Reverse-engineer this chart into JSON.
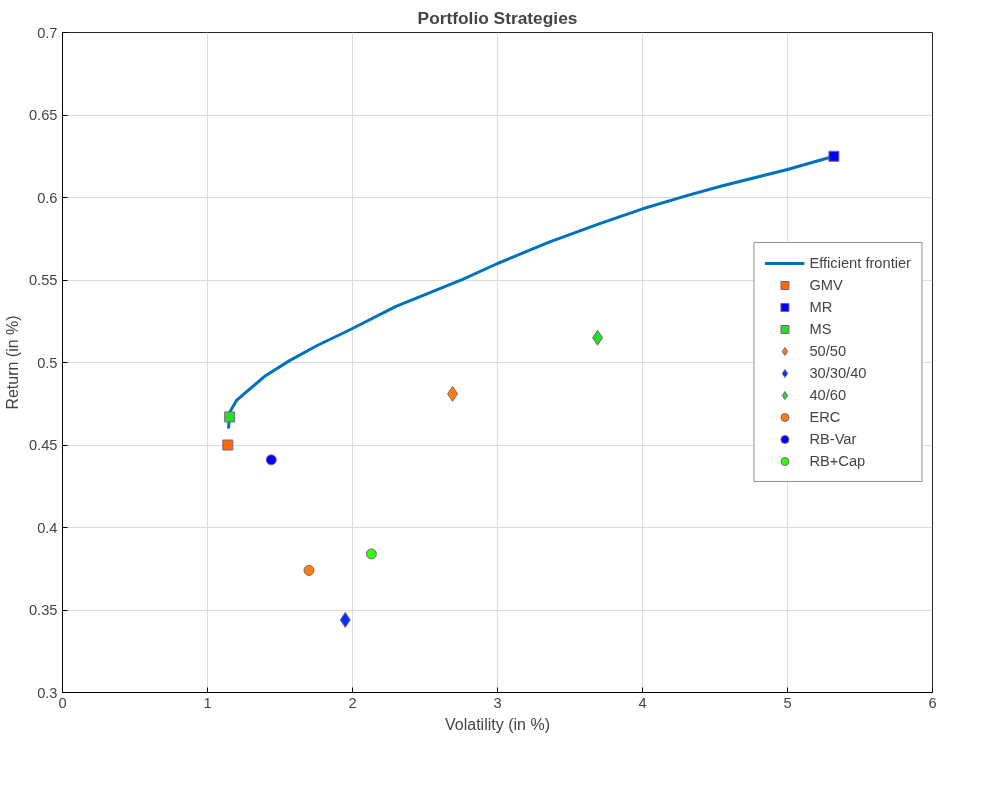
{
  "chart_data": {
    "type": "scatter",
    "title": "Portfolio Strategies",
    "xlabel": "Volatility (in %)",
    "ylabel": "Return (in %)",
    "xlim": [
      0,
      6
    ],
    "xticks": [
      0,
      1,
      2,
      3,
      4,
      5,
      6
    ],
    "ylim": [
      0.3,
      0.7
    ],
    "yticks": [
      0.3,
      0.35,
      0.4,
      0.45,
      0.5,
      0.55,
      0.6,
      0.65,
      0.7
    ],
    "grid": true,
    "legend": "right",
    "series": [
      {
        "name": "Efficient frontier",
        "type": "line",
        "marker": "none",
        "line_style": "solid",
        "color": "#0072bd",
        "x": [
          1.145,
          1.153,
          1.2,
          1.272,
          1.4,
          1.569,
          1.75,
          1.986,
          2.3,
          2.76,
          3.0,
          3.356,
          3.7,
          3.996,
          4.3,
          4.546,
          5.0,
          5.32
        ],
        "values": [
          0.46,
          0.4699,
          0.477,
          0.4825,
          0.492,
          0.5013,
          0.51,
          0.52,
          0.534,
          0.5504,
          0.56,
          0.573,
          0.584,
          0.593,
          0.601,
          0.607,
          0.617,
          0.625
        ]
      },
      {
        "name": "GMV",
        "marker": "square",
        "color": "#ff6a00",
        "x": [
          1.14
        ],
        "values": [
          0.45
        ]
      },
      {
        "name": "MR",
        "marker": "square",
        "color": "#0000ff",
        "x": [
          5.32
        ],
        "values": [
          0.625
        ]
      },
      {
        "name": "MS",
        "marker": "square",
        "color": "#22e022",
        "x": [
          1.153
        ],
        "values": [
          0.467
        ]
      },
      {
        "name": "50/50",
        "marker": "diamond",
        "color": "#ff8000",
        "x": [
          2.69
        ],
        "values": [
          0.481
        ]
      },
      {
        "name": "30/30/40",
        "marker": "diamond",
        "color": "#0033ff",
        "x": [
          1.95
        ],
        "values": [
          0.344
        ]
      },
      {
        "name": "40/60",
        "marker": "diamond",
        "color": "#22e022",
        "x": [
          3.69
        ],
        "values": [
          0.515
        ]
      },
      {
        "name": "ERC",
        "marker": "circle",
        "color": "#ff8000",
        "x": [
          1.7
        ],
        "values": [
          0.374
        ]
      },
      {
        "name": "RB-Var",
        "marker": "circle",
        "color": "#0000ff",
        "x": [
          1.44
        ],
        "values": [
          0.441
        ]
      },
      {
        "name": "RB+Cap",
        "marker": "circle",
        "color": "#33ff00",
        "x": [
          2.13
        ],
        "values": [
          0.384
        ]
      }
    ]
  }
}
